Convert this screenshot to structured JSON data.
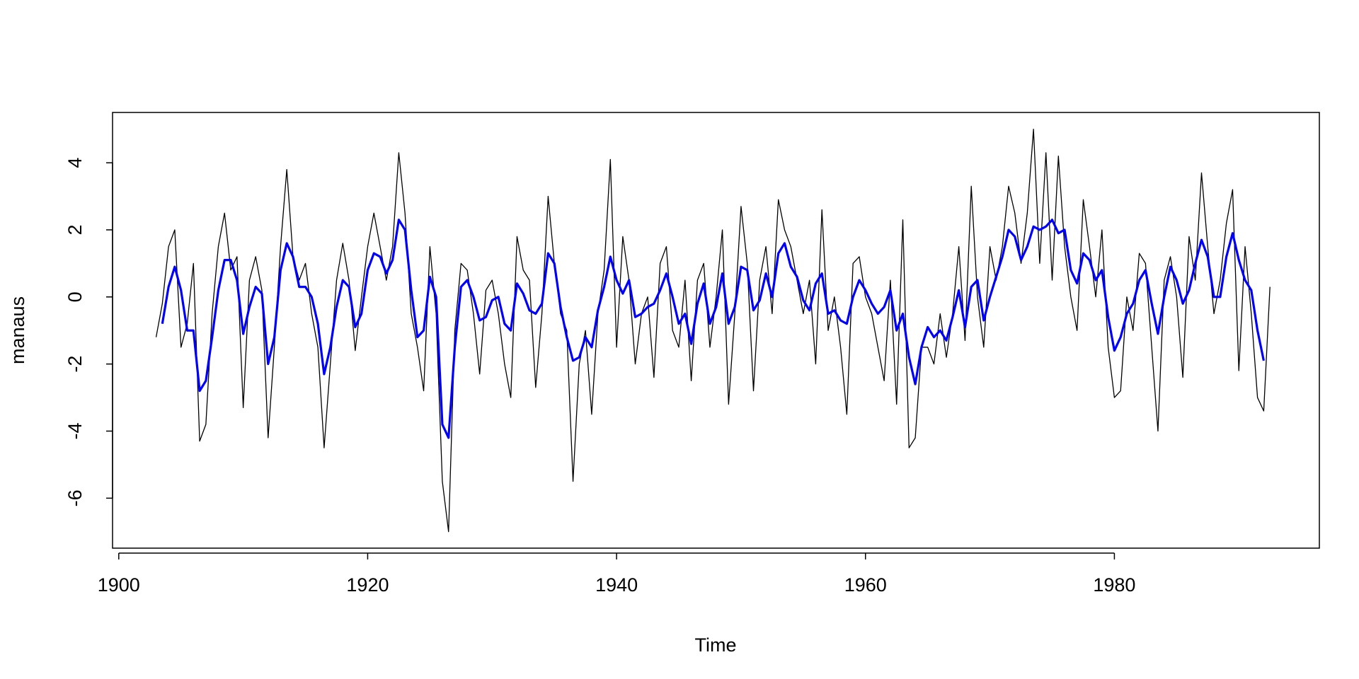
{
  "chart_data": {
    "type": "line",
    "x_label": "Time",
    "y_label": "manaus",
    "xlim": [
      1899.5,
      1996.47
    ],
    "ylim": [
      -7.49,
      5.5
    ],
    "xticks": [
      1900,
      1920,
      1940,
      1960,
      1980
    ],
    "yticks": [
      -6,
      -4,
      -2,
      0,
      2,
      4
    ],
    "x": [
      1903,
      1903.5,
      1904,
      1904.5,
      1905,
      1905.5,
      1906,
      1906.5,
      1907,
      1907.5,
      1908,
      1908.5,
      1909,
      1909.5,
      1910,
      1910.5,
      1911,
      1911.5,
      1912,
      1912.5,
      1913,
      1913.5,
      1914,
      1914.5,
      1915,
      1915.5,
      1916,
      1916.5,
      1917,
      1917.5,
      1918,
      1918.5,
      1919,
      1919.5,
      1920,
      1920.5,
      1921,
      1921.5,
      1922,
      1922.5,
      1923,
      1923.5,
      1924,
      1924.5,
      1925,
      1925.5,
      1926,
      1926.5,
      1927,
      1927.5,
      1928,
      1928.5,
      1929,
      1929.5,
      1930,
      1930.5,
      1931,
      1931.5,
      1932,
      1932.5,
      1933,
      1933.5,
      1934,
      1934.5,
      1935,
      1935.5,
      1936,
      1936.5,
      1937,
      1937.5,
      1938,
      1938.5,
      1939,
      1939.5,
      1940,
      1940.5,
      1941,
      1941.5,
      1942,
      1942.5,
      1943,
      1943.5,
      1944,
      1944.5,
      1945,
      1945.5,
      1946,
      1946.5,
      1947,
      1947.5,
      1948,
      1948.5,
      1949,
      1949.5,
      1950,
      1950.5,
      1951,
      1951.5,
      1952,
      1952.5,
      1953,
      1953.5,
      1954,
      1954.5,
      1955,
      1955.5,
      1956,
      1956.5,
      1957,
      1957.5,
      1958,
      1958.5,
      1959,
      1959.5,
      1960,
      1960.5,
      1961,
      1961.5,
      1962,
      1962.5,
      1963,
      1963.5,
      1964,
      1964.5,
      1965,
      1965.5,
      1966,
      1966.5,
      1967,
      1967.5,
      1968,
      1968.5,
      1969,
      1969.5,
      1970,
      1970.5,
      1971,
      1971.5,
      1972,
      1972.5,
      1973,
      1973.5,
      1974,
      1974.5,
      1975,
      1975.5,
      1976,
      1976.5,
      1977,
      1977.5,
      1978,
      1978.5,
      1979,
      1979.5,
      1980,
      1980.5,
      1981,
      1981.5,
      1982,
      1982.5,
      1983,
      1983.5,
      1984,
      1984.5,
      1985,
      1985.5,
      1986,
      1986.5,
      1987,
      1987.5,
      1988,
      1988.5,
      1989,
      1989.5,
      1990,
      1990.5,
      1991,
      1991.5,
      1992,
      1992.5
    ],
    "series": [
      {
        "color": "#000000",
        "width": 1.3,
        "values": [
          -1.2,
          -0.2,
          1.5,
          2.0,
          -1.5,
          -0.8,
          1.0,
          -4.3,
          -3.8,
          -0.5,
          1.5,
          2.5,
          0.8,
          1.2,
          -3.3,
          0.5,
          1.2,
          0.2,
          -4.2,
          -1.5,
          1.5,
          3.8,
          1.2,
          0.5,
          1.0,
          -0.5,
          -1.5,
          -4.5,
          -2.0,
          0.5,
          1.6,
          0.5,
          -1.6,
          0.0,
          1.5,
          2.5,
          1.5,
          0.5,
          1.5,
          4.3,
          2.5,
          -0.5,
          -1.5,
          -2.8,
          1.5,
          -0.5,
          -5.5,
          -7.0,
          -1.0,
          1.0,
          0.8,
          -0.5,
          -2.3,
          0.2,
          0.5,
          -0.5,
          -2.0,
          -3.0,
          1.8,
          0.8,
          0.5,
          -2.7,
          -0.5,
          3.0,
          1.0,
          -0.5,
          -1.0,
          -5.5,
          -2.0,
          -1.0,
          -3.5,
          -0.5,
          0.8,
          4.1,
          -1.5,
          1.8,
          0.5,
          -2.0,
          -0.5,
          0.0,
          -2.4,
          1.0,
          1.5,
          -1.0,
          -1.5,
          0.5,
          -2.5,
          0.5,
          1.0,
          -1.5,
          0.0,
          2.0,
          -3.2,
          -0.5,
          2.7,
          1.0,
          -2.8,
          0.5,
          1.5,
          -0.5,
          2.9,
          2.0,
          1.5,
          0.5,
          -0.5,
          0.5,
          -2.0,
          2.6,
          -1.0,
          0.0,
          -1.5,
          -3.5,
          1.0,
          1.2,
          0.0,
          -0.5,
          -1.5,
          -2.5,
          0.5,
          -3.2,
          2.3,
          -4.5,
          -4.2,
          -1.5,
          -1.5,
          -2.0,
          -0.5,
          -1.8,
          -0.5,
          1.5,
          -1.3,
          3.3,
          0.0,
          -1.5,
          1.5,
          0.5,
          1.5,
          3.3,
          2.5,
          1.0,
          2.5,
          5.0,
          1.0,
          4.3,
          0.5,
          4.2,
          1.5,
          0.0,
          -1.0,
          2.9,
          1.5,
          0.0,
          2.0,
          -1.5,
          -3.0,
          -2.8,
          0.0,
          -1.0,
          1.3,
          1.0,
          -1.5,
          -4.0,
          0.5,
          1.2,
          0.0,
          -2.4,
          1.8,
          0.5,
          3.7,
          1.5,
          -0.5,
          0.5,
          2.2,
          3.2,
          -2.2,
          1.5,
          -0.5,
          -3.0,
          -3.4,
          0.3
        ]
      },
      {
        "color": "#0000ff",
        "width": 3.2,
        "values": [
          null,
          -0.8,
          0.3,
          0.9,
          0.2,
          -1.0,
          -1.0,
          -2.8,
          -2.5,
          -1.2,
          0.2,
          1.1,
          1.1,
          0.5,
          -1.1,
          -0.3,
          0.3,
          0.1,
          -2.0,
          -1.2,
          0.8,
          1.6,
          1.2,
          0.3,
          0.3,
          0.0,
          -0.8,
          -2.3,
          -1.5,
          -0.3,
          0.5,
          0.3,
          -0.9,
          -0.5,
          0.8,
          1.3,
          1.2,
          0.7,
          1.1,
          2.3,
          2.0,
          0.2,
          -1.2,
          -1.0,
          0.6,
          0.0,
          -3.8,
          -4.2,
          -1.5,
          0.3,
          0.5,
          0.0,
          -0.7,
          -0.6,
          -0.1,
          0.0,
          -0.8,
          -1.0,
          0.4,
          0.1,
          -0.4,
          -0.5,
          -0.2,
          1.3,
          1.0,
          -0.3,
          -1.2,
          -1.9,
          -1.8,
          -1.2,
          -1.5,
          -0.4,
          0.3,
          1.2,
          0.5,
          0.1,
          0.5,
          -0.6,
          -0.5,
          -0.3,
          -0.2,
          0.2,
          0.7,
          0.0,
          -0.8,
          -0.5,
          -1.4,
          -0.2,
          0.4,
          -0.8,
          -0.3,
          0.7,
          -0.8,
          -0.3,
          0.9,
          0.8,
          -0.4,
          -0.1,
          0.7,
          0.0,
          1.3,
          1.6,
          0.9,
          0.6,
          -0.1,
          -0.4,
          0.4,
          0.7,
          -0.5,
          -0.4,
          -0.7,
          -0.8,
          0.0,
          0.5,
          0.2,
          -0.2,
          -0.5,
          -0.3,
          0.2,
          -1.0,
          -0.5,
          -1.8,
          -2.6,
          -1.5,
          -0.9,
          -1.2,
          -1.0,
          -1.3,
          -0.6,
          0.2,
          -0.9,
          0.3,
          0.5,
          -0.7,
          0.0,
          0.6,
          1.2,
          2.0,
          1.8,
          1.1,
          1.5,
          2.1,
          2.0,
          2.1,
          2.3,
          1.9,
          2.0,
          0.8,
          0.4,
          1.3,
          1.1,
          0.5,
          0.8,
          -0.6,
          -1.6,
          -1.2,
          -0.5,
          -0.2,
          0.5,
          0.8,
          -0.2,
          -1.1,
          0.0,
          0.9,
          0.5,
          -0.2,
          0.2,
          1.0,
          1.7,
          1.2,
          0.0,
          0.0,
          1.2,
          1.9,
          1.1,
          0.5,
          0.2,
          -1.0,
          -1.9,
          null
        ]
      }
    ]
  }
}
